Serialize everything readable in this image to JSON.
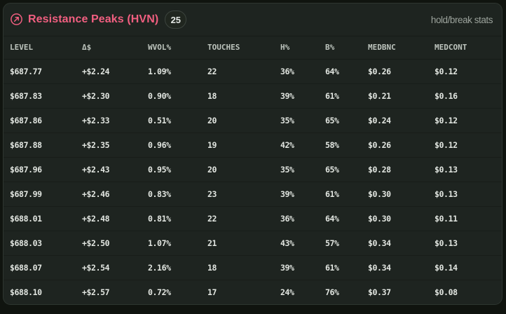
{
  "header": {
    "icon": "arrow-up-right-circle-icon",
    "title": "Resistance Peaks (HVN)",
    "count": "25",
    "stats_label": "hold/break stats",
    "accent_color": "#f15f80"
  },
  "table": {
    "columns": [
      "LEVEL",
      "Δ$",
      "WVOL%",
      "TOUCHES",
      "H%",
      "B%",
      "MEDBNC",
      "MEDCONT"
    ],
    "rows": [
      [
        "$687.77",
        "+$2.24",
        "1.09%",
        "22",
        "36%",
        "64%",
        "$0.26",
        "$0.12"
      ],
      [
        "$687.83",
        "+$2.30",
        "0.90%",
        "18",
        "39%",
        "61%",
        "$0.21",
        "$0.16"
      ],
      [
        "$687.86",
        "+$2.33",
        "0.51%",
        "20",
        "35%",
        "65%",
        "$0.24",
        "$0.12"
      ],
      [
        "$687.88",
        "+$2.35",
        "0.96%",
        "19",
        "42%",
        "58%",
        "$0.26",
        "$0.12"
      ],
      [
        "$687.96",
        "+$2.43",
        "0.95%",
        "20",
        "35%",
        "65%",
        "$0.28",
        "$0.13"
      ],
      [
        "$687.99",
        "+$2.46",
        "0.83%",
        "23",
        "39%",
        "61%",
        "$0.30",
        "$0.13"
      ],
      [
        "$688.01",
        "+$2.48",
        "0.81%",
        "22",
        "36%",
        "64%",
        "$0.30",
        "$0.11"
      ],
      [
        "$688.03",
        "+$2.50",
        "1.07%",
        "21",
        "43%",
        "57%",
        "$0.34",
        "$0.13"
      ],
      [
        "$688.07",
        "+$2.54",
        "2.16%",
        "18",
        "39%",
        "61%",
        "$0.34",
        "$0.14"
      ],
      [
        "$688.10",
        "+$2.57",
        "0.72%",
        "17",
        "24%",
        "76%",
        "$0.37",
        "$0.08"
      ]
    ]
  }
}
